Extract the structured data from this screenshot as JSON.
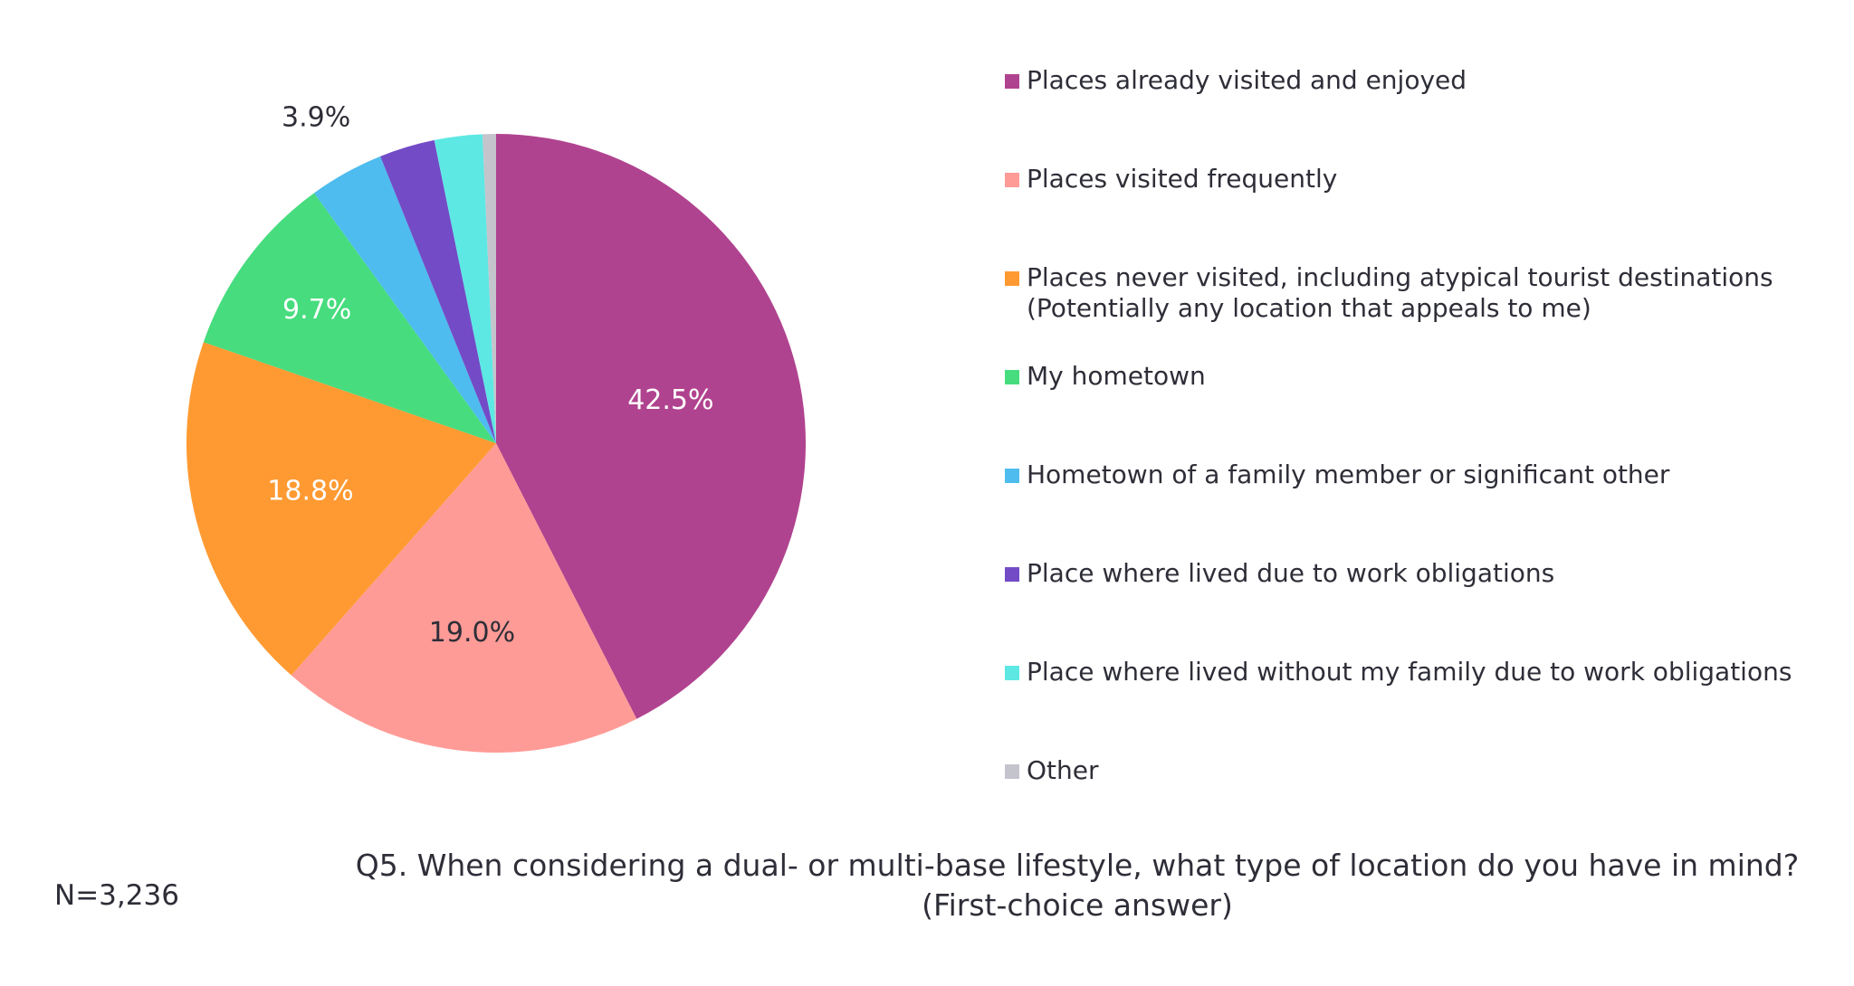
{
  "chart_data": {
    "type": "pie",
    "title": "",
    "categories": [
      "Places already visited and enjoyed",
      "Places visited frequently",
      "Places never visited, including atypical tourist destinations\n(Potentially any location that appeals to me)",
      "My hometown",
      "Hometown of a family member or significant other",
      "Place where lived due to work obligations",
      "Place where lived without my family due to work obligations",
      "Other"
    ],
    "values": [
      42.5,
      19.0,
      18.8,
      9.7,
      3.9,
      2.9,
      2.5,
      0.7
    ],
    "data_labels": [
      "42.5%",
      "19.0%",
      "18.8%",
      "9.7%",
      "3.9%",
      "",
      "",
      ""
    ],
    "colors": [
      "#b0438f",
      "#ff9b96",
      "#ff9a32",
      "#47dc7e",
      "#4ebcee",
      "#734bc7",
      "#5de8e4",
      "#c4c4cc"
    ],
    "label_colors": [
      "#ffffff",
      "#2e2e38",
      "#ffffff",
      "#ffffff",
      "#2e2e38",
      "",
      "",
      ""
    ],
    "legend_position": "right"
  },
  "question": "Q5. When considering a dual- or multi-base lifestyle, what type of location do you have in mind?\n(First-choice answer)",
  "sample_size": "N=3,236"
}
